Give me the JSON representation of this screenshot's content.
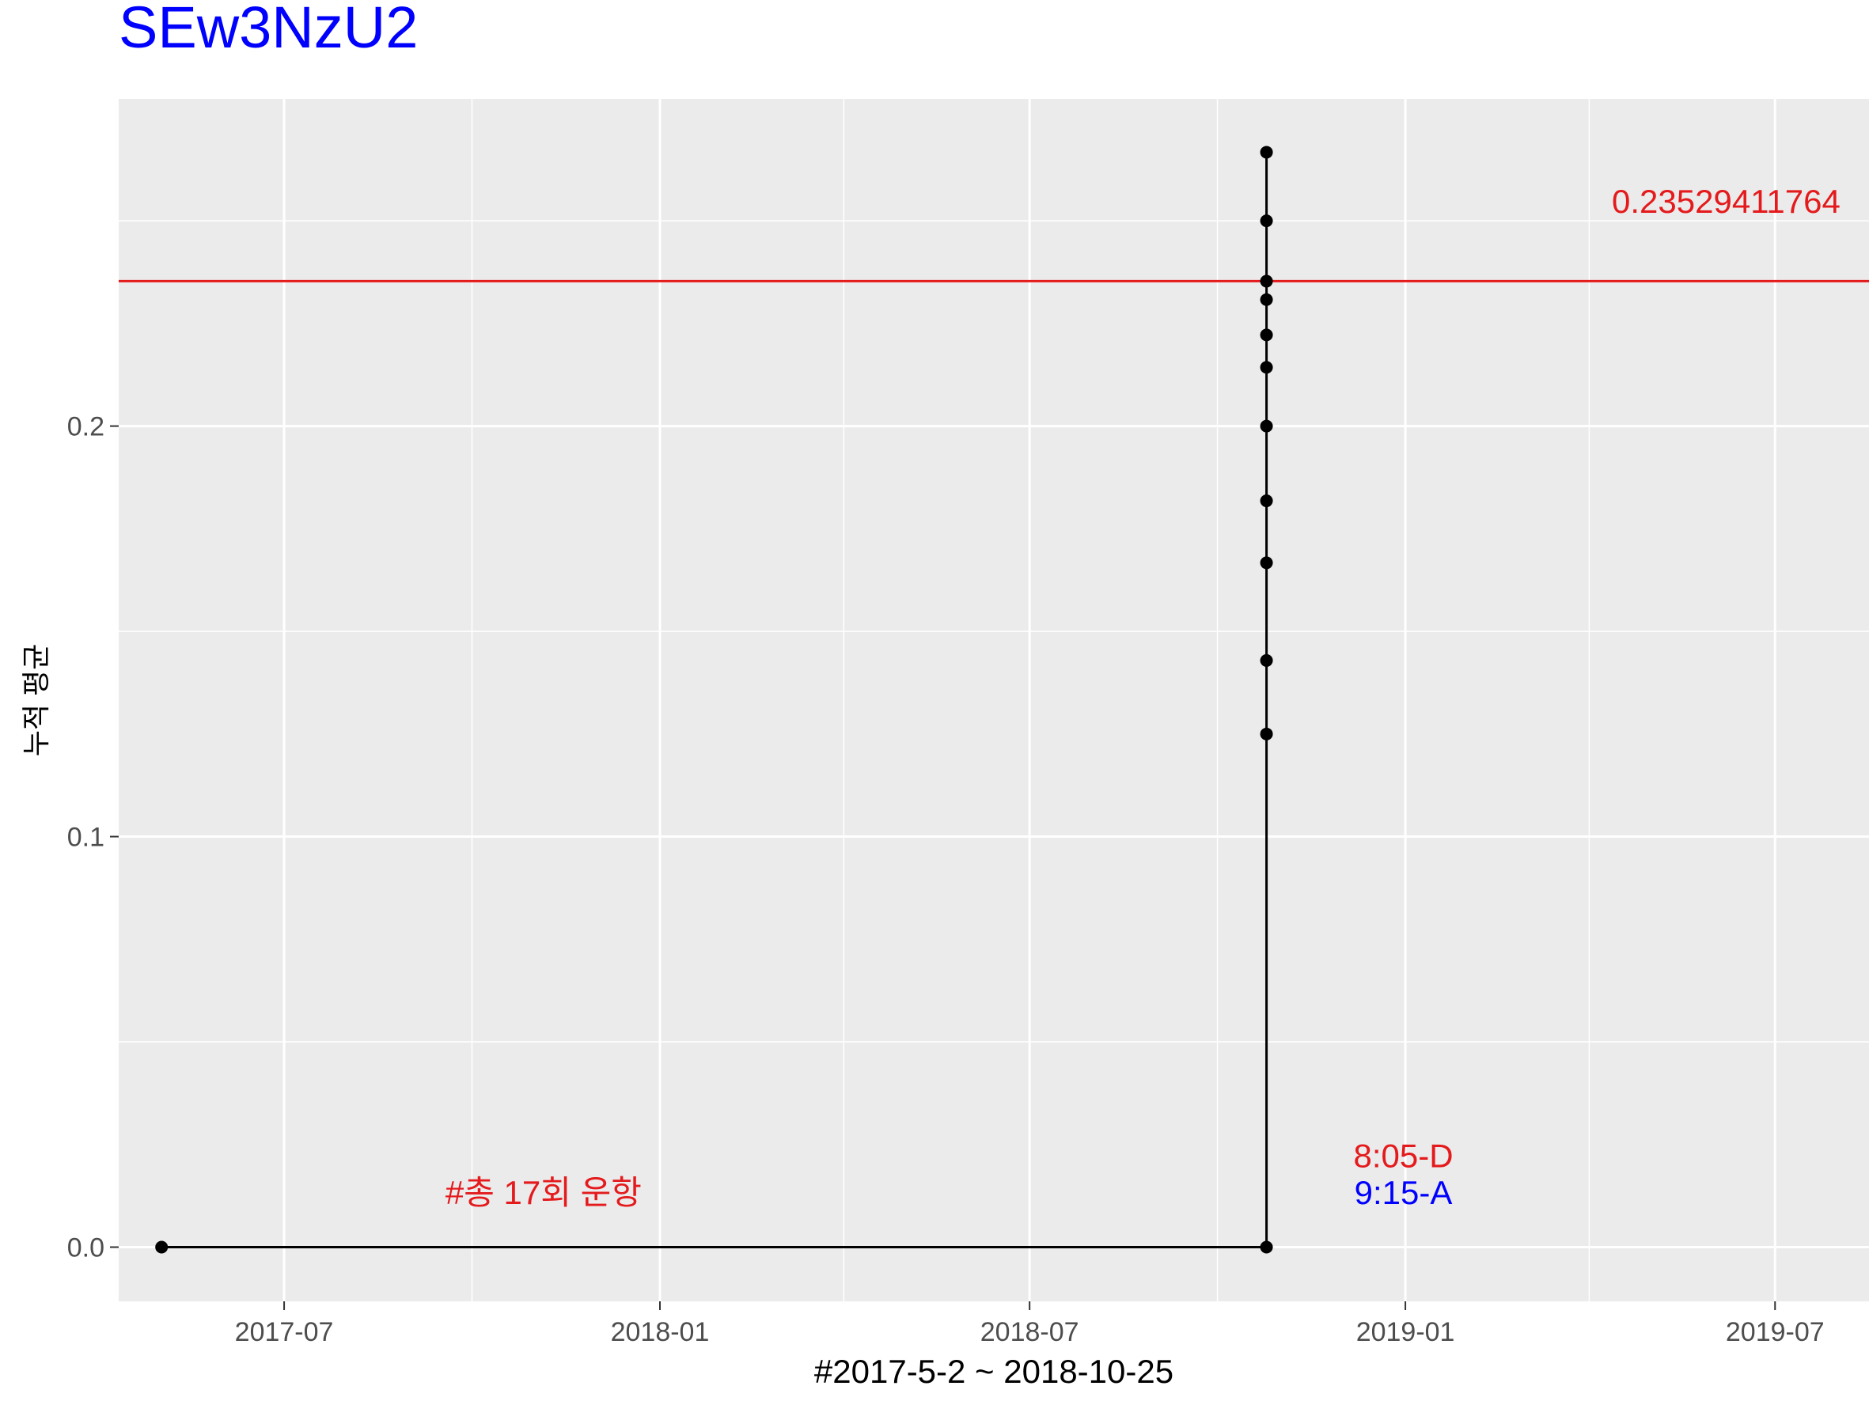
{
  "title": "SEw3NzU2",
  "colors": {
    "title": "#0000ff",
    "panel": "#ebebeb",
    "grid": "#ffffff",
    "line": "#000000",
    "mean_line": "#e41a1c",
    "annotation_red": "#e41a1c",
    "annotation_blue": "#0000ff",
    "axis_text": "#4d4d4d"
  },
  "chart_data": {
    "type": "line",
    "title": "SEw3NzU2",
    "xlabel": "#2017-5-2 ~ 2018-10-25",
    "ylabel": "누적 평균",
    "x_type": "date",
    "xlim": [
      "2017-04-11",
      "2019-08-16"
    ],
    "ylim": [
      -0.0132,
      0.2797
    ],
    "x_ticks": [
      {
        "date": "2017-07-01",
        "label": "2017-07"
      },
      {
        "date": "2018-01-01",
        "label": "2018-01"
      },
      {
        "date": "2018-07-01",
        "label": "2018-07"
      },
      {
        "date": "2019-01-01",
        "label": "2019-01"
      },
      {
        "date": "2019-07-01",
        "label": "2019-07"
      }
    ],
    "x_minor_ticks": [
      "2017-04-01",
      "2017-10-01",
      "2018-04-01",
      "2018-10-01",
      "2019-04-01"
    ],
    "y_ticks": [
      0.0,
      0.1,
      0.2
    ],
    "y_tick_labels": [
      "0.0",
      "0.1",
      "0.2"
    ],
    "y_minor_ticks": [
      0.05,
      0.15,
      0.25
    ],
    "grid": true,
    "legend": "none",
    "series": [
      {
        "x": [
          "2017-05-02",
          "2018-10-25",
          "2018-10-25",
          "2018-10-25",
          "2018-10-25",
          "2018-10-25",
          "2018-10-25",
          "2018-10-25",
          "2018-10-25",
          "2018-10-25",
          "2018-10-25",
          "2018-10-25",
          "2018-10-25"
        ],
        "y": [
          0.0,
          0.0,
          0.125,
          0.1429,
          0.1667,
          0.1818,
          0.2,
          0.2143,
          0.2222,
          0.2308,
          0.2353,
          0.25,
          0.2667
        ]
      }
    ],
    "hline": {
      "y": 0.2353,
      "label": "0.23529411764"
    },
    "annotations": [
      {
        "text": "#총 17회 운항",
        "x": "2017-11-05",
        "y": 0.0105,
        "color": "red"
      },
      {
        "text": "8:05-D",
        "x": "2018-12-31",
        "y": 0.0195,
        "color": "red"
      },
      {
        "text": "9:15-A",
        "x": "2018-12-31",
        "y": 0.0105,
        "color": "blue"
      }
    ]
  }
}
